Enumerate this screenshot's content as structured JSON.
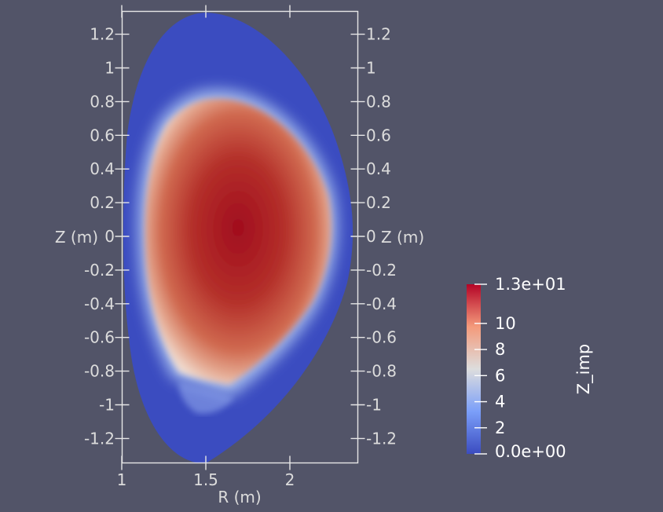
{
  "chart_data": {
    "type": "heatmap",
    "title": "",
    "xlabel": "R (m)",
    "ylabel": "Z (m)",
    "xlim": [
      1.0,
      2.4
    ],
    "ylim": [
      -1.35,
      1.35
    ],
    "x_ticks": [
      {
        "value": 1.0,
        "label": "1"
      },
      {
        "value": 1.5,
        "label": "1.5"
      },
      {
        "value": 2.0,
        "label": "2"
      }
    ],
    "y_ticks": [
      {
        "value": 1.2,
        "label": "1.2"
      },
      {
        "value": 1.0,
        "label": "1"
      },
      {
        "value": 0.8,
        "label": "0.8"
      },
      {
        "value": 0.6,
        "label": "0.6"
      },
      {
        "value": 0.4,
        "label": "0.4"
      },
      {
        "value": 0.2,
        "label": "0.2"
      },
      {
        "value": 0.0,
        "label": "0"
      },
      {
        "value": -0.2,
        "label": "-0.2"
      },
      {
        "value": -0.4,
        "label": "-0.4"
      },
      {
        "value": -0.6,
        "label": "-0.6"
      },
      {
        "value": -0.8,
        "label": "-0.8"
      },
      {
        "value": -1.0,
        "label": "-1"
      },
      {
        "value": -1.2,
        "label": "-1.2"
      }
    ],
    "colorbar": {
      "title": "Z_imp",
      "min": 0.0,
      "max": 13.0,
      "min_label": "0.0e+00",
      "max_label": "1.3e+01",
      "colormap": [
        "#3b4cc0",
        "#dddddd",
        "#b40426"
      ],
      "ticks": [
        {
          "value": 2,
          "label": "2"
        },
        {
          "value": 4,
          "label": "4"
        },
        {
          "value": 6,
          "label": "6"
        },
        {
          "value": 8,
          "label": "8"
        },
        {
          "value": 10,
          "label": "10"
        }
      ]
    },
    "field": {
      "edge_value": 0.3,
      "core_value": 12.8,
      "core_center": [
        1.72,
        -0.05
      ]
    }
  }
}
